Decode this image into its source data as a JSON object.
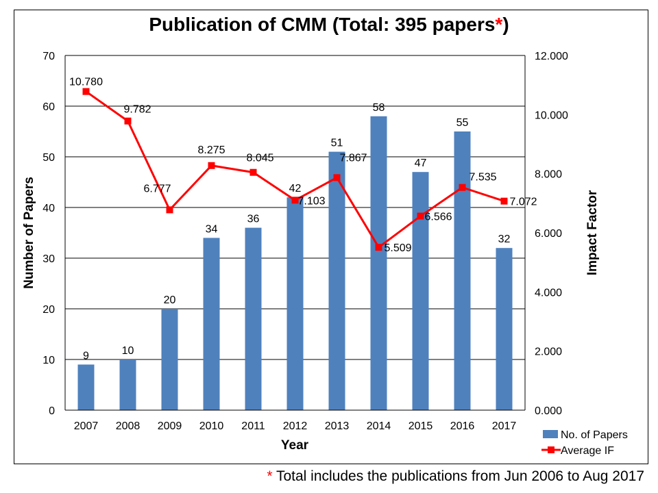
{
  "title": {
    "text": "Publication of CMM (Total: 395 papers",
    "star": "*",
    "close": ")"
  },
  "footnote": {
    "star": "*",
    "text": " Total includes the publications from Jun 2006 to Aug 2017"
  },
  "colors": {
    "bar": "#4f81bd",
    "line": "#ff0000",
    "star": "#ff0000"
  },
  "chart_data": {
    "type": "bar",
    "title": "Publication of CMM (Total: 395 papers*)",
    "xlabel": "Year",
    "ylabel": "Number of Papers",
    "y2label": "Impact Factor",
    "categories": [
      "2007",
      "2008",
      "2009",
      "2010",
      "2011",
      "2012",
      "2013",
      "2014",
      "2015",
      "2016",
      "2017"
    ],
    "ylim": [
      0,
      70
    ],
    "yticks": [
      "0",
      "10",
      "20",
      "30",
      "40",
      "50",
      "60",
      "70"
    ],
    "y2lim": [
      0,
      12
    ],
    "y2ticks": [
      "0.000",
      "2.000",
      "4.000",
      "6.000",
      "8.000",
      "10.000",
      "12.000"
    ],
    "grid": true,
    "legend_position": "bottom-right",
    "series": [
      {
        "name": "No. of Papers",
        "type": "bar",
        "axis": "left",
        "values": [
          9,
          10,
          20,
          34,
          36,
          42,
          51,
          58,
          47,
          55,
          32
        ],
        "labels": [
          "9",
          "10",
          "20",
          "34",
          "36",
          "42",
          "51",
          "58",
          "47",
          "55",
          "32"
        ]
      },
      {
        "name": "Average IF",
        "type": "line",
        "axis": "right",
        "values": [
          10.78,
          9.782,
          6.777,
          8.275,
          8.045,
          7.103,
          7.867,
          5.509,
          6.566,
          7.535,
          7.072
        ],
        "labels": [
          "10.780",
          "9.782",
          "6.777",
          "8.275",
          "8.045",
          "7.103",
          "7.867",
          "5.509",
          "6.566",
          "7.535",
          "7.072"
        ]
      }
    ]
  }
}
